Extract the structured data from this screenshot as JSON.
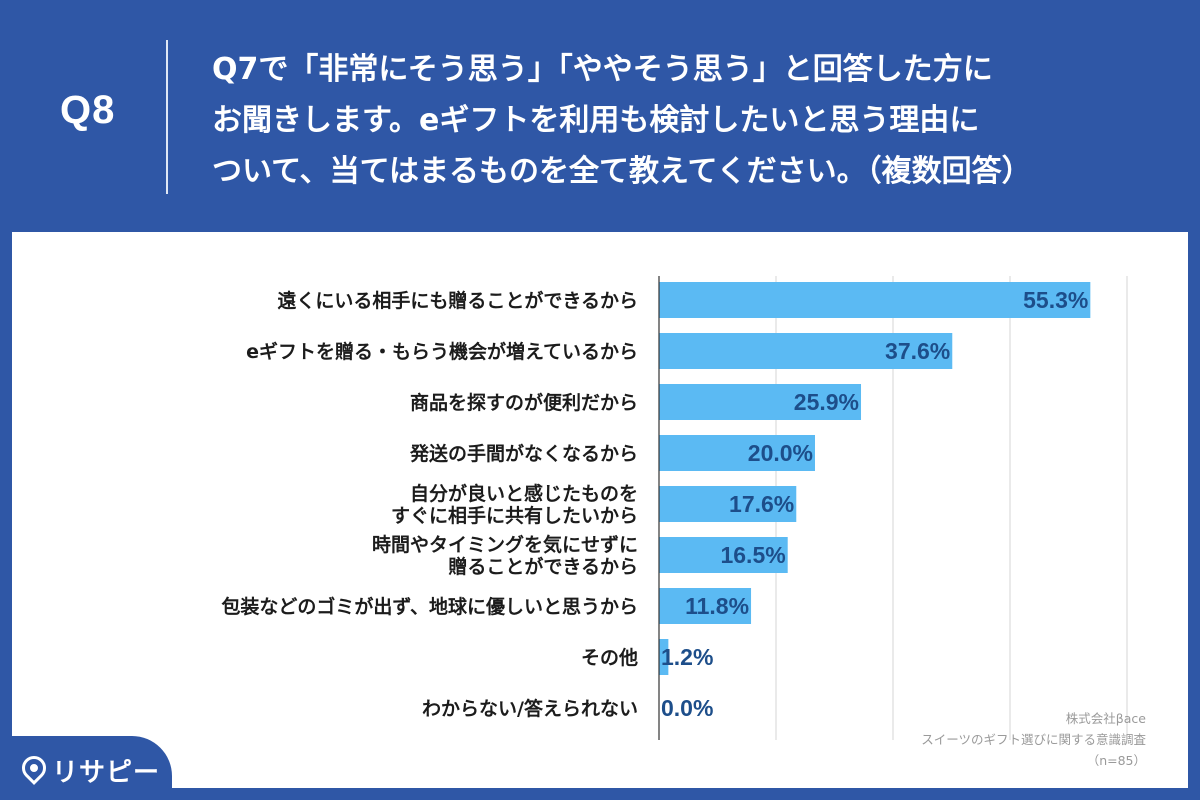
{
  "header": {
    "q_label": "Q8",
    "question_lines": [
      "Q7で「非常にそう思う」「ややそう思う」と回答した方に",
      "お聞きします。eギフトを利用も検討したいと思う理由に",
      "ついて、当てはまるものを全て教えてください。（複数回答）"
    ]
  },
  "source": {
    "company": "株式会社βace",
    "survey": "スイーツのギフト選びに関する意識調査",
    "sample": "（n=85）"
  },
  "logo": {
    "text": "リサピー",
    "icon": "location-pin-icon"
  },
  "colors": {
    "background": "#2f57a6",
    "bar": "#5bbaf3",
    "value_text": "#1d4e8a",
    "grid": "#d4d4d4"
  },
  "chart_data": {
    "type": "bar",
    "orientation": "horizontal",
    "categories": [
      [
        "遠くにいる相手にも贈ることができるから"
      ],
      [
        "eギフトを贈る・もらう機会が増えているから"
      ],
      [
        "商品を探すのが便利だから"
      ],
      [
        "発送の手間がなくなるから"
      ],
      [
        "自分が良いと感じたものを",
        "すぐに相手に共有したいから"
      ],
      [
        "時間やタイミングを気にせずに",
        "贈ることができるから"
      ],
      [
        "包装などのゴミが出ず、地球に優しいと思うから"
      ],
      [
        "その他"
      ],
      [
        "わからない/答えられない"
      ]
    ],
    "values": [
      55.3,
      37.6,
      25.9,
      20.0,
      17.6,
      16.5,
      11.8,
      1.2,
      0.0
    ],
    "value_labels": [
      "55.3%",
      "37.6%",
      "25.9%",
      "20.0%",
      "17.6%",
      "16.5%",
      "11.8%",
      "1.2%",
      "0.0%"
    ],
    "xlim": [
      0,
      60
    ],
    "gridlines": [
      15,
      30,
      45,
      60
    ],
    "grid": true
  }
}
